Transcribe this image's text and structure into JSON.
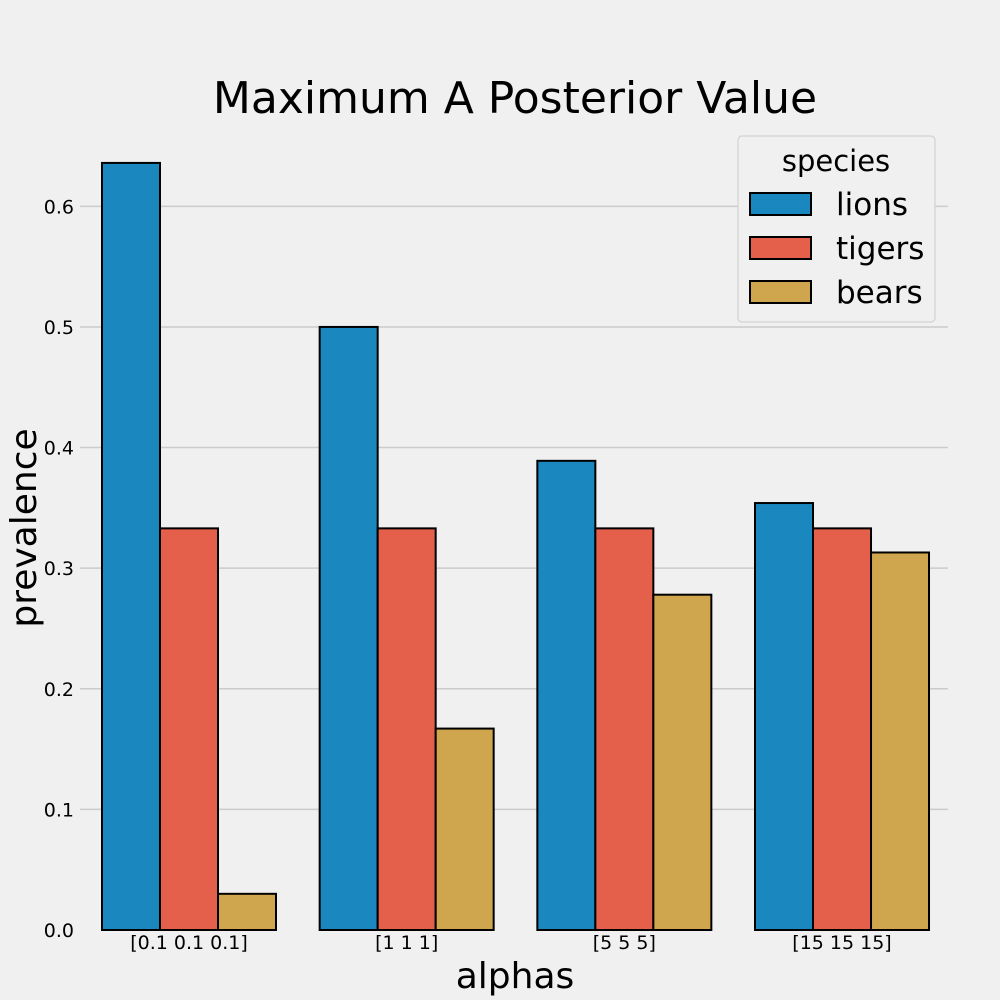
{
  "chart_data": {
    "type": "bar",
    "title": "Maximum A Posterior Value",
    "xlabel": "alphas",
    "ylabel": "prevalence",
    "categories": [
      "[0.1 0.1 0.1]",
      "[1 1 1]",
      "[5 5 5]",
      "[15 15 15]"
    ],
    "series": [
      {
        "name": "lions",
        "color": "#1a87bf",
        "values": [
          0.636,
          0.5,
          0.389,
          0.354
        ]
      },
      {
        "name": "tigers",
        "color": "#e5604a",
        "values": [
          0.333,
          0.333,
          0.333,
          0.333
        ]
      },
      {
        "name": "bears",
        "color": "#cfa54e",
        "values": [
          0.03,
          0.167,
          0.278,
          0.313
        ]
      }
    ],
    "ylim": [
      0,
      0.655
    ],
    "yticks": [
      "0.0",
      "0.1",
      "0.2",
      "0.3",
      "0.4",
      "0.5",
      "0.6"
    ],
    "grid": "horizontal",
    "legend": {
      "title": "species",
      "placement": "top-right"
    }
  }
}
